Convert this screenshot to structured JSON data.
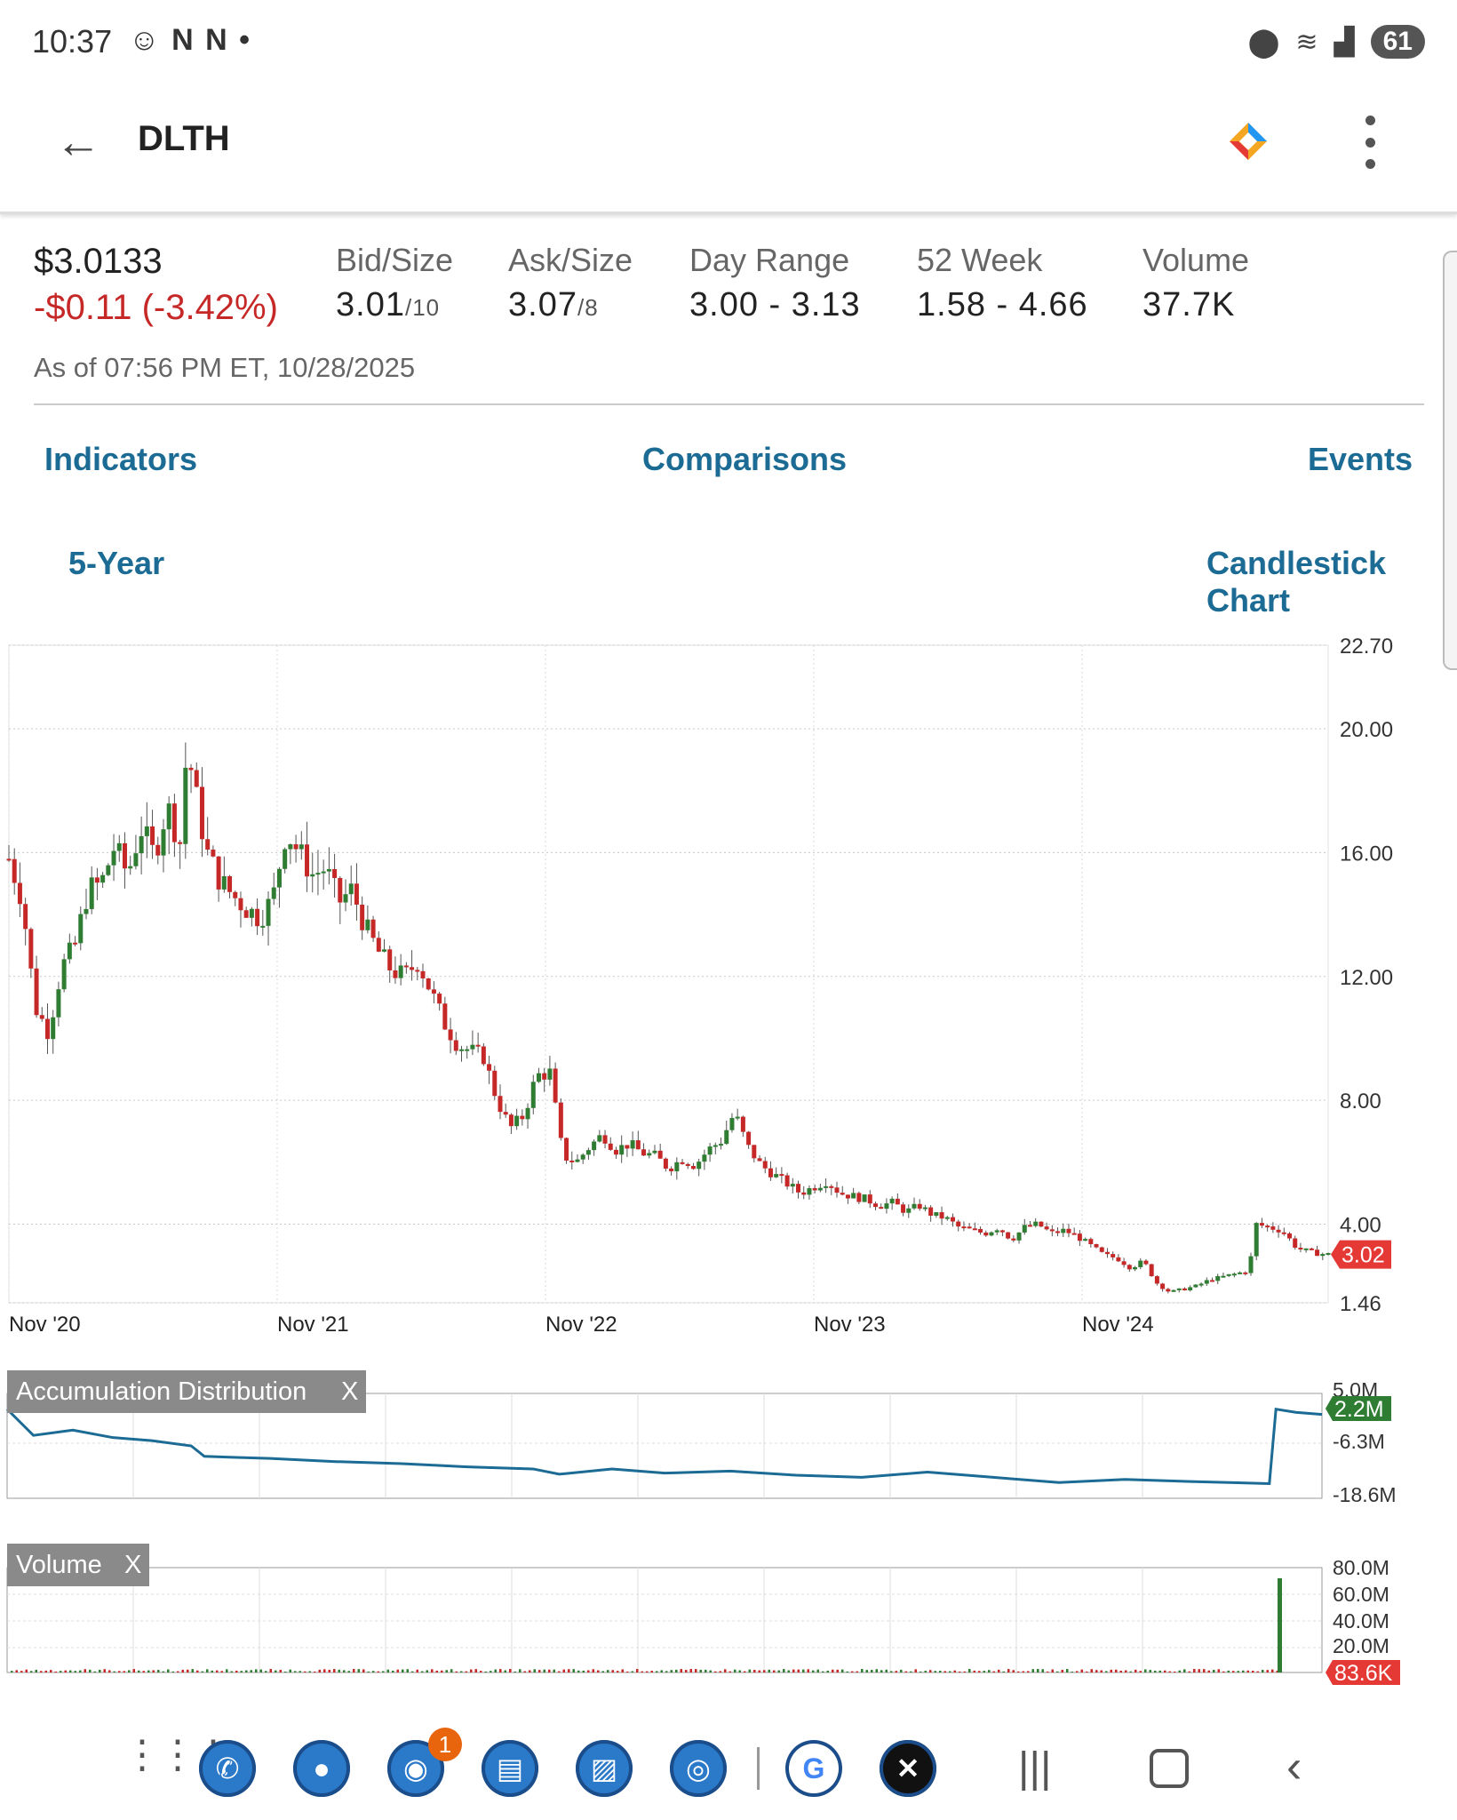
{
  "status_bar": {
    "time": "10:37",
    "notif_icons": "N N •",
    "battery": "61"
  },
  "header": {
    "symbol": "DLTH"
  },
  "quote": {
    "price": "$3.0133",
    "change": "-$0.11 (-3.42%)",
    "bid_label": "Bid/Size",
    "bid_price": "3.01",
    "bid_size": "/10",
    "ask_label": "Ask/Size",
    "ask_price": "3.07",
    "ask_size": "/8",
    "day_range_label": "Day Range",
    "day_range": "3.00 - 3.13",
    "week52_label": "52 Week",
    "week52": "1.58 - 4.66",
    "volume_label": "Volume",
    "volume": "37.7K",
    "as_of": "As of 07:56 PM ET, 10/28/2025",
    "colors": {
      "negative": "#c62828",
      "link": "#1b6b94"
    }
  },
  "tabs": {
    "indicators": "Indicators",
    "comparisons": "Comparisons",
    "events": "Events"
  },
  "controls": {
    "period": "5-Year",
    "chart_type": "Candlestick Chart"
  },
  "chart_data": [
    {
      "type": "candlestick",
      "x_ticks": [
        "Nov '20",
        "Nov '21",
        "Nov '22",
        "Nov '23",
        "Nov '24"
      ],
      "y_ticks": [
        "22.70",
        "20.00",
        "16.00",
        "12.00",
        "8.00",
        "4.00",
        "1.46"
      ],
      "ylim": [
        1.46,
        22.7
      ],
      "last_value": "3.02",
      "close_path": [
        [
          0,
          15.8
        ],
        [
          0.01,
          14.5
        ],
        [
          0.02,
          11.0
        ],
        [
          0.03,
          10.2
        ],
        [
          0.04,
          12.3
        ],
        [
          0.05,
          13.0
        ],
        [
          0.06,
          14.8
        ],
        [
          0.07,
          15.0
        ],
        [
          0.08,
          16.2
        ],
        [
          0.09,
          15.3
        ],
        [
          0.1,
          16.8
        ],
        [
          0.11,
          15.9
        ],
        [
          0.12,
          17.5
        ],
        [
          0.13,
          16.3
        ],
        [
          0.135,
          19.5
        ],
        [
          0.14,
          18.2
        ],
        [
          0.15,
          16.0
        ],
        [
          0.16,
          15.1
        ],
        [
          0.17,
          14.6
        ],
        [
          0.18,
          14.2
        ],
        [
          0.19,
          13.9
        ],
        [
          0.2,
          14.5
        ],
        [
          0.21,
          16.7
        ],
        [
          0.22,
          16.0
        ],
        [
          0.23,
          15.3
        ],
        [
          0.24,
          15.5
        ],
        [
          0.25,
          14.4
        ],
        [
          0.26,
          14.8
        ],
        [
          0.27,
          13.6
        ],
        [
          0.28,
          12.8
        ],
        [
          0.29,
          12.2
        ],
        [
          0.3,
          12.0
        ],
        [
          0.31,
          12.5
        ],
        [
          0.32,
          11.5
        ],
        [
          0.33,
          10.5
        ],
        [
          0.34,
          9.8
        ],
        [
          0.35,
          9.6
        ],
        [
          0.36,
          9.4
        ],
        [
          0.37,
          8.0
        ],
        [
          0.38,
          7.1
        ],
        [
          0.39,
          7.5
        ],
        [
          0.4,
          8.8
        ],
        [
          0.41,
          8.9
        ],
        [
          0.42,
          6.2
        ],
        [
          0.43,
          6.0
        ],
        [
          0.44,
          6.5
        ],
        [
          0.45,
          6.9
        ],
        [
          0.46,
          6.4
        ],
        [
          0.47,
          6.6
        ],
        [
          0.48,
          6.3
        ],
        [
          0.49,
          6.2
        ],
        [
          0.5,
          5.8
        ],
        [
          0.51,
          6.1
        ],
        [
          0.52,
          5.9
        ],
        [
          0.53,
          6.4
        ],
        [
          0.54,
          6.7
        ],
        [
          0.55,
          7.6
        ],
        [
          0.56,
          6.5
        ],
        [
          0.57,
          5.9
        ],
        [
          0.58,
          5.6
        ],
        [
          0.59,
          5.3
        ],
        [
          0.6,
          5.0
        ],
        [
          0.61,
          5.2
        ],
        [
          0.62,
          5.4
        ],
        [
          0.63,
          5.0
        ],
        [
          0.64,
          4.9
        ],
        [
          0.65,
          4.8
        ],
        [
          0.66,
          4.6
        ],
        [
          0.67,
          4.7
        ],
        [
          0.68,
          4.4
        ],
        [
          0.69,
          4.6
        ],
        [
          0.7,
          4.3
        ],
        [
          0.71,
          4.2
        ],
        [
          0.72,
          3.9
        ],
        [
          0.73,
          3.8
        ],
        [
          0.74,
          3.7
        ],
        [
          0.75,
          3.9
        ],
        [
          0.76,
          3.5
        ],
        [
          0.77,
          3.9
        ],
        [
          0.78,
          4.0
        ],
        [
          0.79,
          3.7
        ],
        [
          0.8,
          3.8
        ],
        [
          0.81,
          3.6
        ],
        [
          0.82,
          3.3
        ],
        [
          0.83,
          3.0
        ],
        [
          0.84,
          2.9
        ],
        [
          0.85,
          2.6
        ],
        [
          0.86,
          2.8
        ],
        [
          0.87,
          2.1
        ],
        [
          0.88,
          1.8
        ],
        [
          0.89,
          1.9
        ],
        [
          0.9,
          2.0
        ],
        [
          0.91,
          2.2
        ],
        [
          0.92,
          2.3
        ],
        [
          0.93,
          2.4
        ],
        [
          0.94,
          2.5
        ],
        [
          0.945,
          4.0
        ],
        [
          0.955,
          3.9
        ],
        [
          0.965,
          3.8
        ],
        [
          0.975,
          3.3
        ],
        [
          0.985,
          3.1
        ],
        [
          1.0,
          3.02
        ]
      ]
    },
    {
      "type": "line",
      "series": [
        {
          "name": "Accumulation Distribution"
        }
      ],
      "y_ticks": [
        "5.0M",
        "-6.3M",
        "-18.6M"
      ],
      "last_value": "2.2M"
    },
    {
      "type": "bar",
      "series": [
        {
          "name": "Volume"
        }
      ],
      "y_ticks": [
        "80.0M",
        "60.0M",
        "40.0M",
        "20.0M"
      ],
      "last_value": "83.6K"
    }
  ],
  "indicator_labels": {
    "ad": "Accumulation Distribution",
    "volume": "Volume",
    "close": "X"
  },
  "nav_bar": {
    "chrome_badge": "1"
  }
}
